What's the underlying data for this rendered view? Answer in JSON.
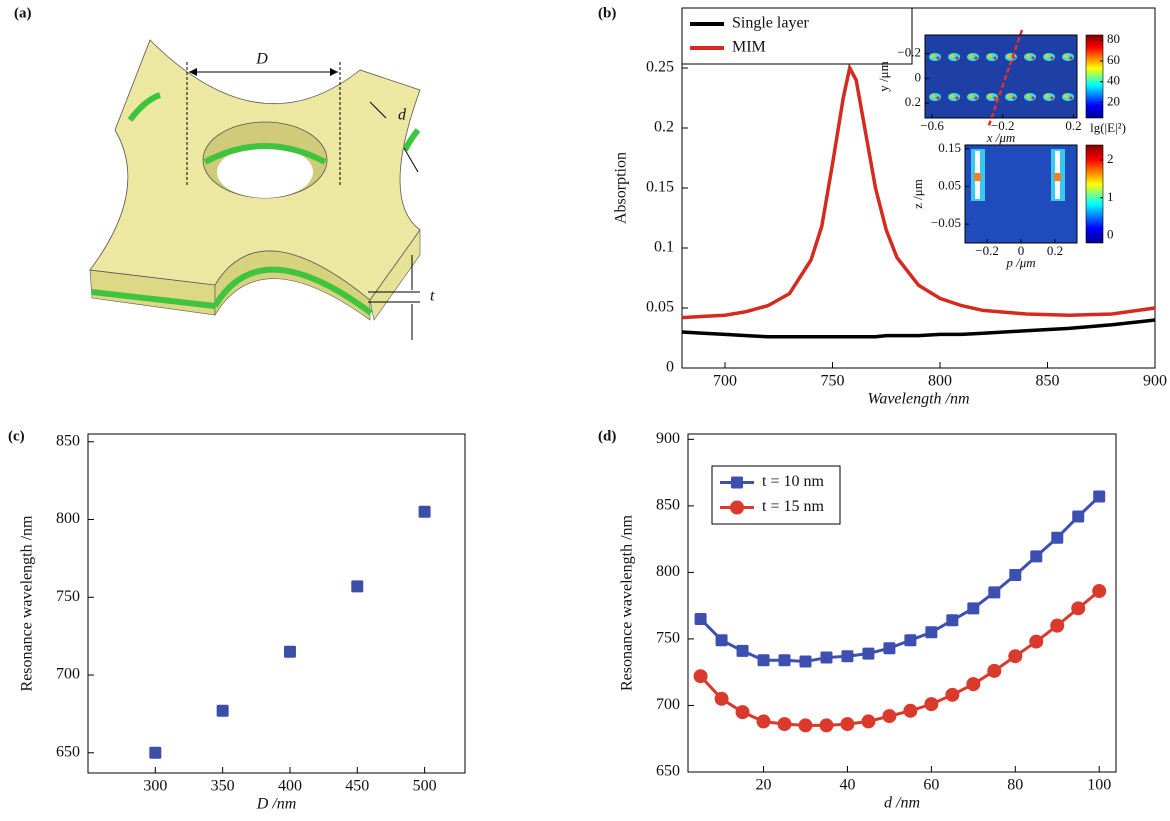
{
  "diagram": {
    "label": "(a)",
    "dimensions": [
      "D",
      "d",
      "t"
    ]
  },
  "chart_data": [
    {
      "type": "line",
      "label": "(b)",
      "xlabel": "Wavelength /nm",
      "ylabel": "Absorption",
      "x": [
        680,
        690,
        700,
        710,
        720,
        730,
        740,
        745,
        750,
        755,
        758,
        761,
        765,
        770,
        775,
        780,
        790,
        800,
        810,
        820,
        840,
        860,
        880,
        900
      ],
      "series": [
        {
          "name": "Single layer",
          "color": "#000000",
          "values": [
            0.03,
            0.029,
            0.028,
            0.027,
            0.026,
            0.026,
            0.026,
            0.026,
            0.026,
            0.026,
            0.026,
            0.026,
            0.026,
            0.026,
            0.027,
            0.027,
            0.027,
            0.028,
            0.028,
            0.029,
            0.031,
            0.033,
            0.036,
            0.04
          ]
        },
        {
          "name": "MIM",
          "color": "#d42a20",
          "values": [
            0.042,
            0.043,
            0.044,
            0.047,
            0.052,
            0.062,
            0.09,
            0.118,
            0.17,
            0.225,
            0.25,
            0.24,
            0.2,
            0.15,
            0.115,
            0.092,
            0.069,
            0.058,
            0.052,
            0.048,
            0.045,
            0.044,
            0.045,
            0.05
          ]
        }
      ],
      "xlim": [
        680,
        900
      ],
      "xticks": [
        700,
        750,
        800,
        850,
        900
      ],
      "ylim": [
        0,
        0.3
      ],
      "yticks": [
        0,
        0.05,
        0.1,
        0.15,
        0.2,
        0.25
      ],
      "legend": "upper left",
      "insets": [
        {
          "xlabel": "x /μm",
          "ylabel": "y /μm",
          "xlim": [
            -0.64,
            0.22
          ],
          "xticks": [
            {
              "value": -0.6,
              "label": "−0.6"
            },
            {
              "value": -0.2,
              "label": "−0.2"
            },
            0.2
          ],
          "ylim": [
            0.32,
            -0.35
          ],
          "yticks": [
            {
              "value": -0.2,
              "label": "−0.2"
            },
            0,
            0.2
          ],
          "colorbar": {
            "lim": [
              5,
              85
            ],
            "ticks": [
              20,
              40,
              60,
              80
            ]
          }
        },
        {
          "xlabel": "p /μm",
          "ylabel": "z /μm",
          "xlim": [
            -0.33,
            0.33
          ],
          "xticks": [
            {
              "value": -0.2,
              "label": "−0.2"
            },
            0,
            0.2
          ],
          "ylim": [
            -0.1,
            0.16
          ],
          "yticks": [
            0.15,
            0.05,
            {
              "value": -0.05,
              "label": "−0.05"
            }
          ],
          "colorbar": {
            "label": "lg(|E|²)",
            "lim": [
              -0.2,
              2.4
            ],
            "ticks": [
              0,
              1,
              2
            ]
          }
        }
      ]
    },
    {
      "type": "scatter",
      "label": "(c)",
      "xlabel": "D /nm",
      "ylabel": "Resonance wavelength /nm",
      "x": [
        300,
        350,
        400,
        450,
        500
      ],
      "values": [
        650,
        677,
        715,
        757,
        805
      ],
      "color": "#3b4ea8",
      "marker": "square",
      "xlim": [
        250,
        530
      ],
      "xticks": [
        300,
        350,
        400,
        450,
        500
      ],
      "ylim": [
        637,
        855
      ],
      "yticks": [
        650,
        700,
        750,
        800,
        850
      ]
    },
    {
      "type": "line",
      "label": "(d)",
      "xlabel": "d /nm",
      "ylabel": "Resonance wavelength /nm",
      "x": [
        5,
        10,
        15,
        20,
        25,
        30,
        35,
        40,
        45,
        50,
        55,
        60,
        65,
        70,
        75,
        80,
        85,
        90,
        95,
        100
      ],
      "series": [
        {
          "name": "t = 10 nm",
          "color": "#3d4fb0",
          "marker": "square",
          "values": [
            765,
            749,
            741,
            734,
            734,
            733,
            736,
            737,
            739,
            743,
            749,
            755,
            764,
            773,
            785,
            798,
            812,
            826,
            842,
            857
          ]
        },
        {
          "name": "t = 15 nm",
          "color": "#d93a2b",
          "marker": "circle",
          "values": [
            722,
            705,
            695,
            688,
            686,
            685,
            685,
            686,
            688,
            692,
            696,
            701,
            708,
            716,
            726,
            737,
            748,
            760,
            773,
            786
          ]
        }
      ],
      "xlim": [
        2,
        104
      ],
      "xticks": [
        20,
        40,
        60,
        80,
        100
      ],
      "ylim": [
        650,
        904
      ],
      "yticks": [
        650,
        700,
        750,
        800,
        850,
        900
      ],
      "legend": "upper left"
    }
  ]
}
